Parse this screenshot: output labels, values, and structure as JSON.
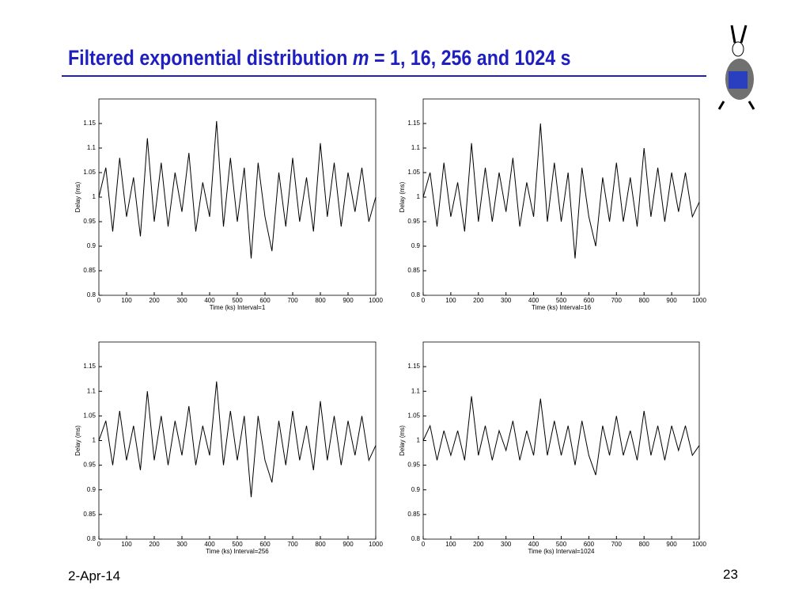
{
  "slide": {
    "title": [
      "Filtered exponential distribution ",
      "m",
      " = 1, 16, 256 and 1024 s"
    ],
    "date": "2-Apr-14",
    "page": "23"
  },
  "chart_data": [
    {
      "type": "line",
      "xlabel": "Time (ks) Interval=1",
      "ylabel": "Delay (ms)",
      "color": "#000000",
      "x": [
        0,
        25,
        50,
        75,
        100,
        125,
        150,
        175,
        200,
        225,
        250,
        275,
        300,
        325,
        350,
        375,
        400,
        425,
        450,
        475,
        500,
        525,
        550,
        575,
        600,
        625,
        650,
        675,
        700,
        725,
        750,
        775,
        800,
        825,
        850,
        875,
        900,
        925,
        950,
        975,
        1000
      ],
      "values": [
        1.0,
        1.06,
        0.93,
        1.08,
        0.96,
        1.04,
        0.92,
        1.12,
        0.95,
        1.07,
        0.94,
        1.05,
        0.97,
        1.09,
        0.93,
        1.03,
        0.96,
        1.155,
        0.94,
        1.08,
        0.95,
        1.06,
        0.875,
        1.07,
        0.96,
        0.89,
        1.05,
        0.94,
        1.08,
        0.95,
        1.04,
        0.93,
        1.11,
        0.96,
        1.07,
        0.94,
        1.05,
        0.97,
        1.06,
        0.95,
        1.0
      ],
      "xlim": [
        0,
        1000
      ],
      "ylim": [
        0.8,
        1.2
      ],
      "xticks": [
        0,
        100,
        200,
        300,
        400,
        500,
        600,
        700,
        800,
        900,
        1000
      ],
      "yticks": [
        0.8,
        0.85,
        0.9,
        0.95,
        1,
        1.05,
        1.1,
        1.15
      ]
    },
    {
      "type": "line",
      "xlabel": "Time (ks) Interval=16",
      "ylabel": "Delay (ms)",
      "color": "#000000",
      "x": [
        0,
        25,
        50,
        75,
        100,
        125,
        150,
        175,
        200,
        225,
        250,
        275,
        300,
        325,
        350,
        375,
        400,
        425,
        450,
        475,
        500,
        525,
        550,
        575,
        600,
        625,
        650,
        675,
        700,
        725,
        750,
        775,
        800,
        825,
        850,
        875,
        900,
        925,
        950,
        975,
        1000
      ],
      "values": [
        1.0,
        1.05,
        0.94,
        1.07,
        0.96,
        1.03,
        0.93,
        1.11,
        0.95,
        1.06,
        0.95,
        1.05,
        0.97,
        1.08,
        0.94,
        1.03,
        0.96,
        1.15,
        0.95,
        1.07,
        0.95,
        1.05,
        0.875,
        1.06,
        0.96,
        0.9,
        1.04,
        0.95,
        1.07,
        0.95,
        1.04,
        0.94,
        1.1,
        0.96,
        1.06,
        0.95,
        1.05,
        0.97,
        1.05,
        0.96,
        0.99
      ],
      "xlim": [
        0,
        1000
      ],
      "ylim": [
        0.8,
        1.2
      ],
      "xticks": [
        0,
        100,
        200,
        300,
        400,
        500,
        600,
        700,
        800,
        900,
        1000
      ],
      "yticks": [
        0.8,
        0.85,
        0.9,
        0.95,
        1,
        1.05,
        1.1,
        1.15
      ]
    },
    {
      "type": "line",
      "xlabel": "Time (ks) Interval=256",
      "ylabel": "Delay (ms)",
      "color": "#000000",
      "x": [
        0,
        25,
        50,
        75,
        100,
        125,
        150,
        175,
        200,
        225,
        250,
        275,
        300,
        325,
        350,
        375,
        400,
        425,
        450,
        475,
        500,
        525,
        550,
        575,
        600,
        625,
        650,
        675,
        700,
        725,
        750,
        775,
        800,
        825,
        850,
        875,
        900,
        925,
        950,
        975,
        1000
      ],
      "values": [
        1.0,
        1.04,
        0.95,
        1.06,
        0.96,
        1.03,
        0.94,
        1.1,
        0.96,
        1.05,
        0.95,
        1.04,
        0.97,
        1.07,
        0.95,
        1.03,
        0.97,
        1.12,
        0.95,
        1.06,
        0.96,
        1.05,
        0.885,
        1.05,
        0.96,
        0.915,
        1.04,
        0.95,
        1.06,
        0.96,
        1.03,
        0.94,
        1.08,
        0.96,
        1.05,
        0.95,
        1.04,
        0.97,
        1.05,
        0.96,
        0.99
      ],
      "xlim": [
        0,
        1000
      ],
      "ylim": [
        0.8,
        1.2
      ],
      "xticks": [
        0,
        100,
        200,
        300,
        400,
        500,
        600,
        700,
        800,
        900,
        1000
      ],
      "yticks": [
        0.8,
        0.85,
        0.9,
        0.95,
        1,
        1.05,
        1.1,
        1.15
      ]
    },
    {
      "type": "line",
      "xlabel": "Time (ks) Interval=1024",
      "ylabel": "Delay (ms)",
      "color": "#000000",
      "x": [
        0,
        25,
        50,
        75,
        100,
        125,
        150,
        175,
        200,
        225,
        250,
        275,
        300,
        325,
        350,
        375,
        400,
        425,
        450,
        475,
        500,
        525,
        550,
        575,
        600,
        625,
        650,
        675,
        700,
        725,
        750,
        775,
        800,
        825,
        850,
        875,
        900,
        925,
        950,
        975,
        1000
      ],
      "values": [
        1.0,
        1.03,
        0.96,
        1.02,
        0.97,
        1.02,
        0.96,
        1.09,
        0.97,
        1.03,
        0.96,
        1.02,
        0.98,
        1.04,
        0.96,
        1.02,
        0.97,
        1.085,
        0.97,
        1.04,
        0.97,
        1.03,
        0.95,
        1.04,
        0.97,
        0.93,
        1.03,
        0.97,
        1.05,
        0.97,
        1.02,
        0.96,
        1.06,
        0.97,
        1.03,
        0.96,
        1.03,
        0.98,
        1.03,
        0.97,
        0.99
      ],
      "xlim": [
        0,
        1000
      ],
      "ylim": [
        0.8,
        1.2
      ],
      "xticks": [
        0,
        100,
        200,
        300,
        400,
        500,
        600,
        700,
        800,
        900,
        1000
      ],
      "yticks": [
        0.8,
        0.85,
        0.9,
        0.95,
        1,
        1.05,
        1.1,
        1.15
      ]
    }
  ]
}
